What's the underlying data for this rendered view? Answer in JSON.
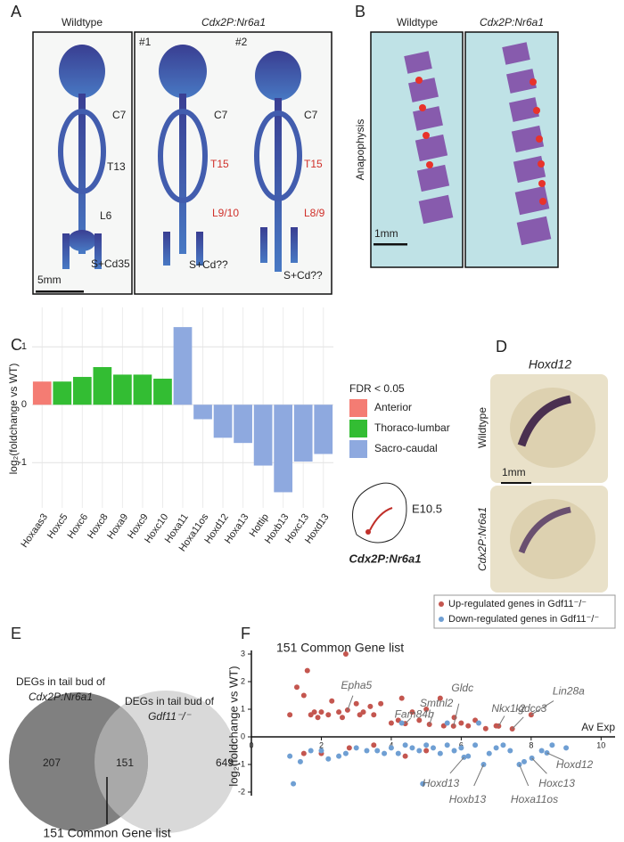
{
  "panel_labels": [
    "A",
    "B",
    "C",
    "D",
    "E",
    "F"
  ],
  "panel_a": {
    "headers": [
      "Wildtype",
      "Cdx2P:Nr6a1"
    ],
    "replicates": [
      "#1",
      "#2"
    ],
    "wildtype_labels": [
      "C7",
      "T13",
      "L6",
      "S+Cd35"
    ],
    "mutant1_labels": [
      "C7",
      "T15",
      "L9/10",
      "S+Cd??"
    ],
    "mutant2_labels": [
      "C7",
      "T15",
      "L8/9",
      "S+Cd??"
    ],
    "scale_bar": "5mm"
  },
  "panel_b": {
    "headers": [
      "Wildtype",
      "Cdx2P:Nr6a1"
    ],
    "side_label": "Anapophysis",
    "scale_bar": "1mm"
  },
  "panel_d": {
    "title": "Hoxd12",
    "row_labels": [
      "Wildtype",
      "Cdx2P:Nr6a1"
    ],
    "scale_bar": "1mm"
  },
  "venn": {
    "left_label": [
      "DEGs in tail bud of",
      "Cdx2P:Nr6a1"
    ],
    "right_label": [
      "DEGs in tail bud of",
      "Gdf11⁻/⁻"
    ],
    "counts": [
      207,
      151,
      649
    ],
    "caption": "151 Common Gene list"
  },
  "chart_data": [
    {
      "type": "bar",
      "y_label": "log₂(foldchange vs WT)",
      "categories": [
        "Hoxaas3",
        "Hoxc5",
        "Hoxc6",
        "Hoxc8",
        "Hoxa9",
        "Hoxc9",
        "Hoxc10",
        "Hoxa11",
        "Hoxa11os",
        "Hoxd12",
        "Hoxa13",
        "Hottip",
        "Hoxb13",
        "Hoxc13",
        "Hoxd13"
      ],
      "series": [
        {
          "name": "Anterior",
          "color": "#f47c73",
          "values": [
            0.4,
            null,
            null,
            null,
            null,
            null,
            null,
            null,
            null,
            null,
            null,
            null,
            null,
            null,
            null
          ]
        },
        {
          "name": "Thoraco-lumbar",
          "color": "#33bd33",
          "values": [
            null,
            0.4,
            0.48,
            0.65,
            0.52,
            0.52,
            0.45,
            null,
            null,
            null,
            null,
            null,
            null,
            null,
            null
          ]
        },
        {
          "name": "Sacro-caudal",
          "color": "#8ea9df",
          "values": [
            null,
            null,
            null,
            null,
            null,
            null,
            null,
            1.34,
            -0.25,
            -0.57,
            -0.66,
            -1.05,
            -1.51,
            -0.98,
            -0.85
          ]
        }
      ],
      "ylim": [
        -1.78,
        1.68
      ],
      "yticks": [
        -1,
        0,
        1
      ],
      "grid": true,
      "legend_title": "FDR < 0.05",
      "inset_labels": [
        "E10.5",
        "Cdx2P:Nr6a1"
      ]
    },
    {
      "type": "scatter",
      "title": "151 Common Gene list",
      "y_label": "log₂(foldchange vs WT)",
      "x_label": "Av Exp",
      "series": [
        {
          "name": "Up-regulated genes in Gdf11⁻/⁻",
          "color": "#c4564f",
          "x": [
            1.1,
            1.3,
            1.5,
            1.6,
            1.7,
            1.8,
            1.9,
            2.0,
            2.2,
            2.3,
            2.5,
            2.6,
            2.7,
            2.75,
            3.0,
            3.1,
            3.2,
            3.4,
            3.5,
            3.7,
            4.0,
            4.2,
            4.3,
            4.4,
            4.6,
            4.8,
            5.0,
            5.09,
            5.4,
            5.5,
            5.78,
            5.8,
            6.0,
            6.2,
            6.4,
            6.7,
            7.0,
            7.07,
            7.46,
            8.0,
            1.5,
            2.0,
            2.8,
            3.5,
            4.4,
            5.0
          ],
          "y": [
            0.8,
            1.8,
            1.5,
            2.4,
            0.8,
            0.9,
            0.7,
            0.9,
            0.8,
            1.3,
            0.9,
            0.7,
            3.0,
            0.97,
            1.2,
            0.8,
            0.9,
            1.1,
            0.8,
            1.2,
            0.5,
            0.6,
            1.4,
            0.48,
            0.9,
            0.6,
            1.0,
            0.45,
            1.4,
            0.4,
            0.39,
            0.7,
            0.5,
            0.4,
            0.6,
            0.3,
            0.4,
            0.39,
            0.29,
            0.8,
            -0.6,
            -0.6,
            -0.4,
            -0.3,
            -0.7,
            -0.5
          ]
        },
        {
          "name": "Down-regulated genes in Gdf11⁻/⁻",
          "color": "#6f9fd3",
          "x": [
            1.1,
            1.2,
            1.4,
            1.7,
            2.0,
            2.2,
            2.5,
            2.7,
            3.0,
            3.3,
            3.6,
            3.8,
            4.0,
            4.2,
            4.4,
            4.6,
            4.8,
            4.9,
            5.0,
            5.2,
            5.4,
            5.6,
            5.8,
            6.0,
            6.08,
            6.2,
            6.4,
            6.64,
            6.8,
            7.0,
            7.2,
            7.4,
            7.66,
            7.8,
            8.02,
            8.3,
            8.45,
            8.6,
            9.0,
            4.3,
            5.6,
            6.5
          ],
          "y": [
            -0.7,
            -1.7,
            -0.9,
            -0.5,
            -0.5,
            -0.8,
            -0.7,
            -0.6,
            -0.4,
            -0.5,
            -0.5,
            -0.6,
            -0.4,
            -0.6,
            -0.3,
            -0.4,
            -0.5,
            -1.7,
            -0.3,
            -0.4,
            -0.6,
            -0.3,
            -0.5,
            -0.4,
            -0.74,
            -0.7,
            -0.3,
            -1.0,
            -0.6,
            -0.4,
            -0.3,
            -0.5,
            -1.0,
            -0.9,
            -0.77,
            -0.5,
            -0.58,
            -0.3,
            -0.4,
            0.5,
            0.5,
            0.5
          ]
        }
      ],
      "xlim": [
        0,
        10.4
      ],
      "ylim": [
        -2.13,
        3.13
      ],
      "xticks": [
        0,
        2,
        4,
        6,
        8,
        10
      ],
      "yticks": [
        -2,
        -1,
        0,
        1,
        2,
        3
      ],
      "annotations": [
        {
          "text": "Epha5",
          "x": 2.75,
          "y": 0.97
        },
        {
          "text": "Fam84b",
          "x": 4.4,
          "y": 0.48
        },
        {
          "text": "Smtnl2",
          "x": 5.09,
          "y": 0.45
        },
        {
          "text": "Gldc",
          "x": 5.78,
          "y": 0.39
        },
        {
          "text": "Nkx1-2",
          "x": 7.07,
          "y": 0.39
        },
        {
          "text": "Igdcc3",
          "x": 7.46,
          "y": 0.29
        },
        {
          "text": "Lin28a",
          "x": 8.0,
          "y": 0.8
        },
        {
          "text": "Hoxd12",
          "x": 8.45,
          "y": -0.58
        },
        {
          "text": "Hoxc13",
          "x": 8.02,
          "y": -0.77
        },
        {
          "text": "Hoxa11os",
          "x": 7.66,
          "y": -1.0
        },
        {
          "text": "Hoxb13",
          "x": 6.64,
          "y": -1.0
        },
        {
          "text": "Hoxd13",
          "x": 6.08,
          "y": -0.74
        }
      ]
    }
  ]
}
